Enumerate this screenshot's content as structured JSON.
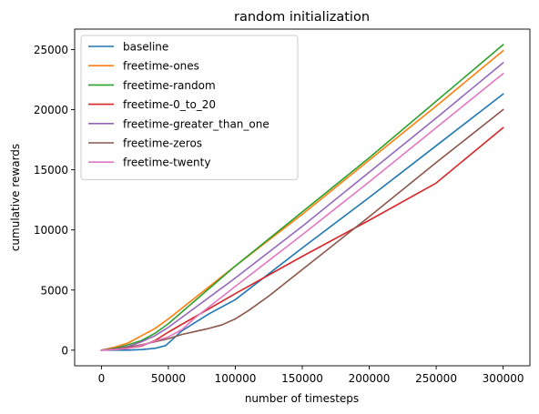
{
  "chart_data": {
    "type": "line",
    "title": "random initialization",
    "xlabel": "number of timesteps",
    "ylabel": "cumulative rewards",
    "xlim": [
      -20000,
      320000
    ],
    "ylim": [
      -1300,
      26700
    ],
    "xticks": [
      0,
      50000,
      100000,
      150000,
      200000,
      250000,
      300000
    ],
    "xtick_labels": [
      "0",
      "50000",
      "100000",
      "150000",
      "200000",
      "250000",
      "300000"
    ],
    "yticks": [
      0,
      5000,
      10000,
      15000,
      20000,
      25000
    ],
    "ytick_labels": [
      "0",
      "5000",
      "10000",
      "15000",
      "20000",
      "25000"
    ],
    "grid": false,
    "legend_position": "top-left",
    "series": [
      {
        "name": "baseline",
        "color": "#1f77b4",
        "x": [
          0,
          10000,
          20000,
          30000,
          40000,
          48000,
          60000,
          80000,
          100000,
          150000,
          200000,
          250000,
          300000
        ],
        "y": [
          0,
          0,
          0,
          50,
          150,
          380,
          1600,
          3000,
          4200,
          8500,
          12700,
          17000,
          21300
        ]
      },
      {
        "name": "freetime-ones",
        "color": "#ff7f0e",
        "x": [
          0,
          10000,
          20000,
          30000,
          40000,
          50000,
          100000,
          150000,
          200000,
          250000,
          300000
        ],
        "y": [
          0,
          250,
          600,
          1200,
          1800,
          2600,
          7000,
          11300,
          15800,
          20300,
          24900
        ]
      },
      {
        "name": "freetime-random",
        "color": "#2ca02c",
        "x": [
          0,
          10000,
          20000,
          30000,
          40000,
          50000,
          100000,
          150000,
          200000,
          250000,
          300000
        ],
        "y": [
          0,
          150,
          450,
          800,
          1400,
          2200,
          7000,
          11500,
          16000,
          20700,
          25400
        ]
      },
      {
        "name": "freetime-0_to_20",
        "color": "#d62728",
        "x": [
          0,
          10000,
          20000,
          30000,
          40000,
          50000,
          100000,
          150000,
          200000,
          250000,
          300000
        ],
        "y": [
          0,
          50,
          150,
          350,
          800,
          1500,
          4700,
          7800,
          10800,
          13900,
          18500
        ]
      },
      {
        "name": "freetime-greater_than_one",
        "color": "#9467bd",
        "x": [
          0,
          10000,
          20000,
          30000,
          40000,
          50000,
          100000,
          150000,
          200000,
          250000,
          300000
        ],
        "y": [
          0,
          100,
          300,
          700,
          1200,
          1900,
          6000,
          10300,
          14800,
          19300,
          23900
        ]
      },
      {
        "name": "freetime-zeros",
        "color": "#8c564b",
        "x": [
          0,
          10000,
          20000,
          30000,
          40000,
          50000,
          60000,
          70000,
          80000,
          90000,
          100000,
          110000,
          125000,
          150000,
          200000,
          250000,
          300000
        ],
        "y": [
          0,
          100,
          250,
          450,
          700,
          950,
          1300,
          1550,
          1800,
          2100,
          2600,
          3300,
          4500,
          6700,
          11100,
          15600,
          20000
        ]
      },
      {
        "name": "freetime-twenty",
        "color": "#e377c2",
        "x": [
          0,
          10000,
          20000,
          30000,
          40000,
          50000,
          60000,
          70000,
          100000,
          150000,
          200000,
          250000,
          300000
        ],
        "y": [
          0,
          50,
          150,
          400,
          750,
          1100,
          1700,
          2700,
          5300,
          9600,
          14000,
          18500,
          23000
        ]
      }
    ]
  }
}
